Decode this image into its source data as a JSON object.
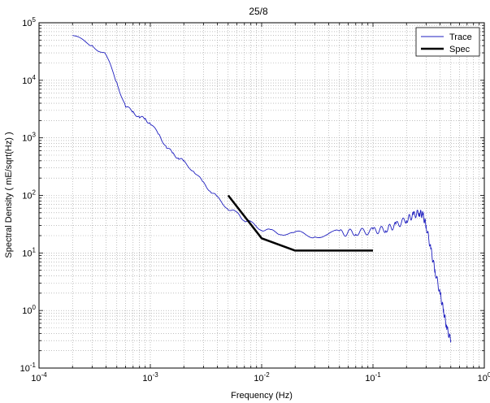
{
  "chart_data": {
    "type": "line",
    "title": "25/8",
    "xlabel": "Frequency (Hz)",
    "ylabel": "Spectral Density ( mE/sqrt(Hz) )",
    "x_scale": "log",
    "y_scale": "log",
    "xlim": [
      0.0001,
      1
    ],
    "ylim": [
      0.1,
      100000
    ],
    "grid": true,
    "legend_position": "top-right",
    "x_ticks": [
      {
        "value": 0.0001,
        "base": "10",
        "exp": "-4"
      },
      {
        "value": 0.001,
        "base": "10",
        "exp": "-3"
      },
      {
        "value": 0.01,
        "base": "10",
        "exp": "-2"
      },
      {
        "value": 0.1,
        "base": "10",
        "exp": "-1"
      },
      {
        "value": 1,
        "base": "10",
        "exp": "0"
      }
    ],
    "y_ticks": [
      {
        "value": 0.1,
        "base": "10",
        "exp": "-1"
      },
      {
        "value": 1,
        "base": "10",
        "exp": "0"
      },
      {
        "value": 10,
        "base": "10",
        "exp": "1"
      },
      {
        "value": 100,
        "base": "10",
        "exp": "2"
      },
      {
        "value": 1000,
        "base": "10",
        "exp": "3"
      },
      {
        "value": 10000,
        "base": "10",
        "exp": "4"
      },
      {
        "value": 100000,
        "base": "10",
        "exp": "5"
      }
    ],
    "series": [
      {
        "name": "Trace",
        "color": "#1f1fbf",
        "points": [
          [
            0.0002,
            60000
          ],
          [
            0.0003,
            40000
          ],
          [
            0.0004,
            28000
          ],
          [
            0.0005,
            9000
          ],
          [
            0.0006,
            3500
          ],
          [
            0.0007,
            2800
          ],
          [
            0.0008,
            2300
          ],
          [
            0.0009,
            2100
          ],
          [
            0.001,
            1800
          ],
          [
            0.0012,
            1100
          ],
          [
            0.0014,
            700
          ],
          [
            0.0016,
            520
          ],
          [
            0.0018,
            450
          ],
          [
            0.002,
            380
          ],
          [
            0.0025,
            260
          ],
          [
            0.003,
            160
          ],
          [
            0.0035,
            120
          ],
          [
            0.004,
            90
          ],
          [
            0.005,
            60
          ],
          [
            0.006,
            48
          ],
          [
            0.007,
            38
          ],
          [
            0.008,
            33
          ],
          [
            0.01,
            26
          ],
          [
            0.012,
            24
          ],
          [
            0.015,
            22
          ],
          [
            0.02,
            21
          ],
          [
            0.03,
            21
          ],
          [
            0.05,
            22
          ],
          [
            0.07,
            23
          ],
          [
            0.1,
            24
          ],
          [
            0.13,
            26
          ],
          [
            0.16,
            30
          ],
          [
            0.2,
            38
          ],
          [
            0.23,
            45
          ],
          [
            0.26,
            50
          ],
          [
            0.28,
            46
          ],
          [
            0.3,
            30
          ],
          [
            0.33,
            12
          ],
          [
            0.36,
            5
          ],
          [
            0.4,
            2
          ],
          [
            0.43,
            1
          ],
          [
            0.46,
            0.5
          ],
          [
            0.5,
            0.3
          ]
        ]
      },
      {
        "name": "Spec",
        "color": "#000000",
        "points": [
          [
            0.005,
            100
          ],
          [
            0.01,
            18
          ],
          [
            0.02,
            11
          ],
          [
            0.1,
            11
          ]
        ]
      }
    ]
  }
}
